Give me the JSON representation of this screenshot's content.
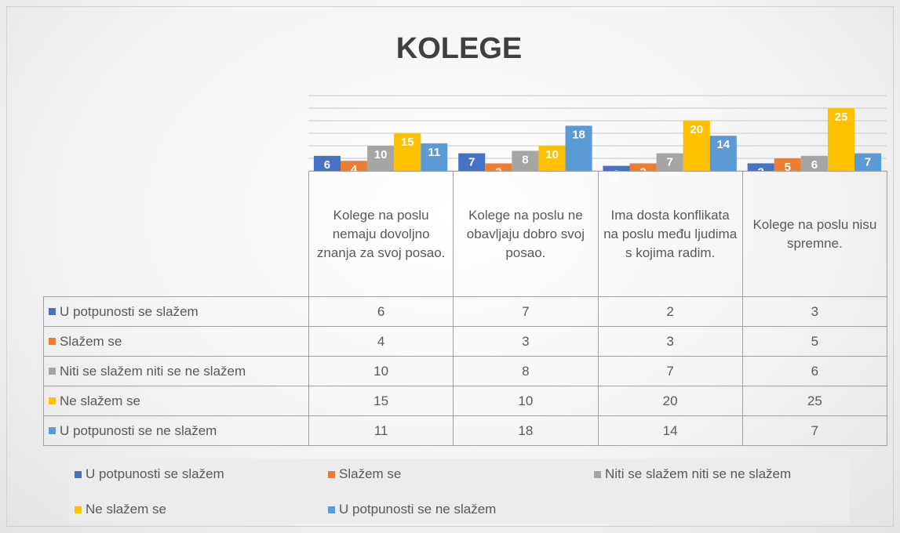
{
  "chart_data": {
    "type": "bar",
    "title": "KOLEGE",
    "categories": [
      "Kolege na poslu nemaju dovoljno znanja za svoj posao.",
      "Kolege na poslu ne obavljaju dobro svoj posao.",
      "Ima dosta konflikata na poslu među ljudima s kojima radim.",
      "Kolege na poslu nisu spremne."
    ],
    "series": [
      {
        "name": "U potpunosti se slažem",
        "color": "#4472c4",
        "values": [
          6,
          7,
          2,
          3
        ]
      },
      {
        "name": "Slažem se",
        "color": "#ed7d31",
        "values": [
          4,
          3,
          3,
          5
        ]
      },
      {
        "name": "Niti se slažem niti se ne slažem",
        "color": "#a5a5a5",
        "values": [
          10,
          8,
          7,
          6
        ]
      },
      {
        "name": "Ne slažem se",
        "color": "#ffc000",
        "values": [
          15,
          10,
          20,
          25
        ]
      },
      {
        "name": "U potpunosti se ne slažem",
        "color": "#5b9bd5",
        "values": [
          11,
          18,
          14,
          7
        ]
      }
    ],
    "ylim": [
      0,
      30
    ],
    "yticks": [
      0,
      5,
      10,
      15,
      20,
      25,
      30
    ],
    "grid": true
  }
}
